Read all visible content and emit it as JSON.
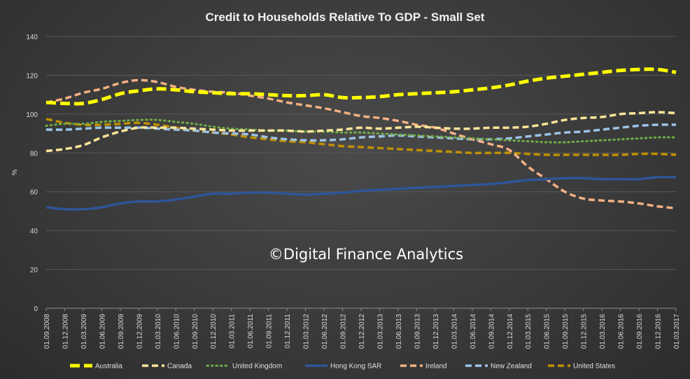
{
  "chart_data": {
    "type": "line",
    "title": "Credit to Households Relative To GDP - Small Set",
    "ylabel": "%",
    "xlabel": "",
    "ylim": [
      0,
      140
    ],
    "yticks": [
      "0",
      "20",
      "40",
      "60",
      "80",
      "100",
      "120",
      "140"
    ],
    "grid": true,
    "legend": "bottom",
    "watermark": "©Digital Finance Analytics",
    "categories": [
      "01.09.2008",
      "01.12.2008",
      "01.03.2009",
      "01.06.2009",
      "01.09.2009",
      "01.12.2009",
      "01.03.2010",
      "01.06.2010",
      "01.09.2010",
      "01.12.2010",
      "01.03.2011",
      "01.06.2011",
      "01.09.2011",
      "01.12.2011",
      "01.03.2012",
      "01.06.2012",
      "01.09.2012",
      "01.12.2012",
      "01.03.2013",
      "01.06.2013",
      "01.09.2013",
      "01.12.2013",
      "01.03.2014",
      "01.06.2014",
      "01.09.2014",
      "01.12.2014",
      "01.03.2015",
      "01.06.2015",
      "01.09.2015",
      "01.12.2015",
      "01.03.2016",
      "01.06.2016",
      "01.09.2016",
      "01.12.2016",
      "01.03.2017"
    ],
    "series": [
      {
        "name": "Australia",
        "color": "#ffff00",
        "style": "dash-thick",
        "values": [
          106,
          105.5,
          105.5,
          107.5,
          110.5,
          112,
          113,
          112.5,
          111.5,
          111,
          110.5,
          110.5,
          110,
          109.5,
          109.5,
          110,
          108.5,
          108.5,
          109,
          110,
          110.5,
          111,
          111.5,
          112.5,
          113.5,
          115,
          117,
          118.5,
          119.5,
          120.5,
          121.5,
          122.5,
          123,
          123,
          121.5
        ]
      },
      {
        "name": "Canada",
        "color": "#ffe699",
        "style": "dash",
        "values": [
          81,
          82,
          84,
          88,
          91,
          93,
          93,
          93,
          92.5,
          92,
          91.5,
          91.5,
          91.5,
          91.5,
          91,
          91.5,
          92,
          93,
          92.5,
          93,
          93.5,
          93,
          92.5,
          92.5,
          93,
          93,
          93.5,
          95,
          97,
          98,
          98.5,
          100,
          100.5,
          101,
          100.5
        ]
      },
      {
        "name": "United Kingdom",
        "color": "#70ad47",
        "style": "dot",
        "values": [
          94,
          95,
          95,
          96,
          96.5,
          97,
          97,
          96,
          95,
          93.5,
          92.5,
          92,
          91.5,
          91.5,
          91,
          91,
          90.5,
          90.5,
          90,
          89.5,
          89,
          88.5,
          88,
          87.5,
          87,
          86.5,
          86,
          85.5,
          85.5,
          86,
          86.5,
          87,
          87.5,
          88,
          88
        ]
      },
      {
        "name": "Hong Kong SAR",
        "color": "#2f5597",
        "style": "solid",
        "values": [
          52,
          51,
          51,
          52,
          54,
          55,
          55,
          56,
          57.5,
          59,
          59,
          59.5,
          59.5,
          59,
          58.5,
          59,
          59.5,
          60.5,
          61,
          61.5,
          62,
          62.5,
          63,
          63.5,
          64,
          65,
          66,
          66.5,
          67,
          67,
          66.5,
          66.5,
          66.5,
          67.5,
          67.5
        ]
      },
      {
        "name": "Ireland",
        "color": "#f4b183",
        "style": "dash",
        "values": [
          106,
          108,
          111,
          113,
          116,
          117.5,
          116.5,
          114,
          112.5,
          111.5,
          111,
          109.5,
          108,
          106,
          104.5,
          103,
          101,
          99,
          98,
          96.5,
          94.5,
          93,
          90,
          87,
          84.5,
          81.5,
          73,
          66.5,
          60,
          56.5,
          55.5,
          55,
          54,
          52.5,
          51.5
        ]
      },
      {
        "name": "New Zealand",
        "color": "#9dc3e6",
        "style": "dash",
        "values": [
          92,
          92,
          92.5,
          93,
          93,
          93,
          92.5,
          92,
          91.5,
          90.5,
          90,
          89.5,
          88,
          87,
          86.5,
          86.5,
          87,
          88,
          88.5,
          89,
          88.5,
          88,
          87.5,
          87,
          87,
          87.5,
          88.5,
          89.5,
          90.5,
          91,
          92,
          93,
          94,
          94.5,
          94.5
        ]
      },
      {
        "name": "United States",
        "color": "#bf9000",
        "style": "dash",
        "values": [
          97.5,
          95.5,
          94.5,
          94.5,
          95,
          95.5,
          94.5,
          93,
          91.5,
          90.5,
          89.5,
          88,
          87,
          86,
          85.5,
          84.5,
          83.5,
          83,
          82.5,
          82,
          81.5,
          81,
          80.5,
          80,
          80,
          80,
          79.5,
          79,
          79,
          79,
          79,
          79,
          79.5,
          79.5,
          79
        ]
      }
    ]
  }
}
